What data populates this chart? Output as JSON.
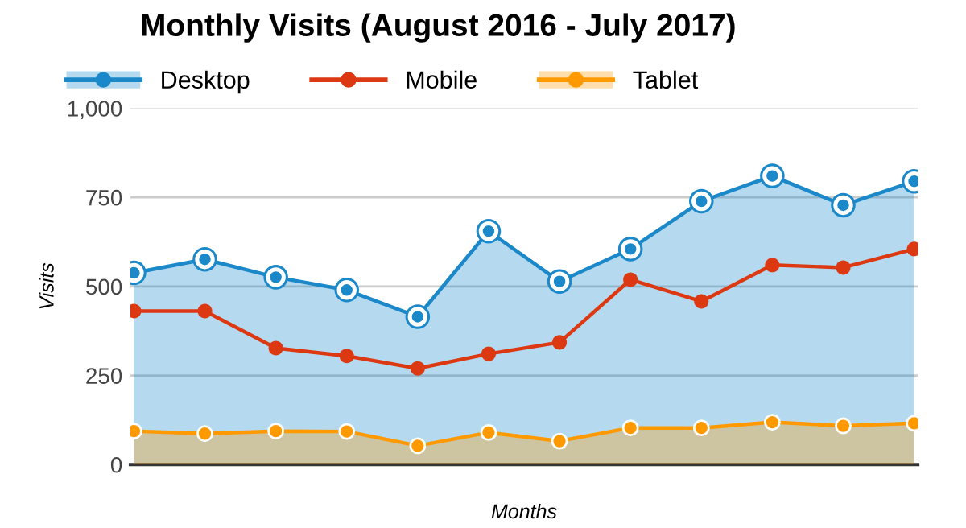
{
  "chart_data": {
    "type": "area",
    "title": "Monthly Visits (August 2016 - July 2017)",
    "xlabel": "Months",
    "ylabel": "Visits",
    "categories": [
      null,
      null,
      null,
      null,
      null,
      null,
      null,
      null,
      null,
      null,
      null,
      null
    ],
    "series": [
      {
        "name": "Desktop",
        "type": "area",
        "color": "#1a88c9",
        "values": [
          538,
          576,
          526,
          490,
          415,
          655,
          514,
          605,
          739,
          810,
          728,
          795
        ]
      },
      {
        "name": "Mobile",
        "type": "line",
        "color": "#dc3912",
        "values": [
          431,
          431,
          327,
          305,
          270,
          311,
          343,
          519,
          458,
          560,
          553,
          605
        ]
      },
      {
        "name": "Tablet",
        "type": "area",
        "color": "#ff9900",
        "values": [
          94,
          87,
          94,
          93,
          53,
          90,
          66,
          103,
          103,
          119,
          109,
          116
        ]
      }
    ],
    "ylim": [
      0,
      1000
    ],
    "yticks": [
      0,
      250,
      500,
      750,
      {
        "value": 1000,
        "label": "1,000"
      }
    ],
    "grid": "y",
    "legend": "top left",
    "marker": "circle",
    "line_style": "solid"
  }
}
